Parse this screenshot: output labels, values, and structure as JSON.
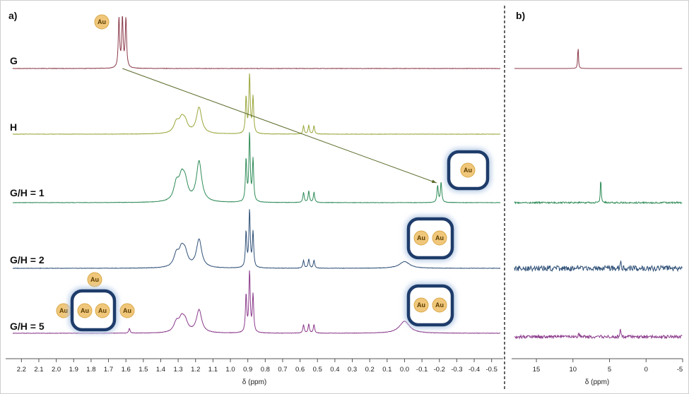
{
  "panels": {
    "a_label": "a)",
    "b_label": "b)"
  },
  "atom_label": "Au",
  "chart_data": [
    {
      "type": "line",
      "panel": "a",
      "xlabel": "δ (ppm)",
      "xlim": [
        2.25,
        -0.55
      ],
      "x_reversed": true,
      "x_ticks": [
        "2.2",
        "2.1",
        "2.0",
        "1.9",
        "1.8",
        "1.7",
        "1.6",
        "1.5",
        "1.4",
        "1.3",
        "1.2",
        "1.1",
        "1.0",
        "0.9",
        "0.8",
        "0.7",
        "0.6",
        "0.5",
        "0.4",
        "0.3",
        "0.2",
        "0.1",
        "0.0",
        "-0.1",
        "-0.2",
        "-0.3",
        "-0.4",
        "-0.5"
      ],
      "grid": false,
      "stacked": true,
      "series": [
        {
          "name": "G",
          "color": "#8b3a4a",
          "peaks": [
            {
              "x": 1.64,
              "y": 1.0
            },
            {
              "x": 1.62,
              "y": 1.0
            },
            {
              "x": 1.6,
              "y": 1.0
            }
          ]
        },
        {
          "name": "H",
          "color": "#9aa63a",
          "peaks": [
            {
              "x": 1.31,
              "y": 0.18
            },
            {
              "x": 1.28,
              "y": 0.2
            },
            {
              "x": 1.26,
              "y": 0.17
            },
            {
              "x": 1.18,
              "y": 0.45
            },
            {
              "x": 0.91,
              "y": 0.62
            },
            {
              "x": 0.89,
              "y": 1.0
            },
            {
              "x": 0.87,
              "y": 0.62
            },
            {
              "x": 0.58,
              "y": 0.14
            },
            {
              "x": 0.55,
              "y": 0.15
            },
            {
              "x": 0.52,
              "y": 0.14
            }
          ]
        },
        {
          "name": "G/H = 1",
          "color": "#2e8b57",
          "peaks": [
            {
              "x": 1.31,
              "y": 0.25
            },
            {
              "x": 1.28,
              "y": 0.3
            },
            {
              "x": 1.26,
              "y": 0.25
            },
            {
              "x": 1.18,
              "y": 0.6
            },
            {
              "x": 0.91,
              "y": 0.62
            },
            {
              "x": 0.89,
              "y": 1.0
            },
            {
              "x": 0.87,
              "y": 0.62
            },
            {
              "x": 0.58,
              "y": 0.15
            },
            {
              "x": 0.55,
              "y": 0.17
            },
            {
              "x": 0.52,
              "y": 0.15
            },
            {
              "x": -0.19,
              "y": 0.25
            },
            {
              "x": -0.21,
              "y": 0.3
            }
          ]
        },
        {
          "name": "G/H = 2",
          "color": "#2f5077",
          "peaks": [
            {
              "x": 1.31,
              "y": 0.22
            },
            {
              "x": 1.28,
              "y": 0.27
            },
            {
              "x": 1.26,
              "y": 0.22
            },
            {
              "x": 1.18,
              "y": 0.5
            },
            {
              "x": 0.91,
              "y": 0.62
            },
            {
              "x": 0.89,
              "y": 1.0
            },
            {
              "x": 0.87,
              "y": 0.62
            },
            {
              "x": 0.58,
              "y": 0.14
            },
            {
              "x": 0.55,
              "y": 0.16
            },
            {
              "x": 0.52,
              "y": 0.14
            },
            {
              "x": 0.0,
              "y": 0.12
            }
          ]
        },
        {
          "name": "G/H = 5",
          "color": "#8b3a8b",
          "peaks": [
            {
              "x": 1.58,
              "y": 0.08
            },
            {
              "x": 1.31,
              "y": 0.16
            },
            {
              "x": 1.28,
              "y": 0.2
            },
            {
              "x": 1.26,
              "y": 0.16
            },
            {
              "x": 1.18,
              "y": 0.38
            },
            {
              "x": 0.91,
              "y": 0.62
            },
            {
              "x": 0.89,
              "y": 1.0
            },
            {
              "x": 0.87,
              "y": 0.62
            },
            {
              "x": 0.58,
              "y": 0.14
            },
            {
              "x": 0.55,
              "y": 0.15
            },
            {
              "x": 0.52,
              "y": 0.14
            },
            {
              "x": 0.0,
              "y": 0.2
            }
          ]
        }
      ],
      "annotations": [
        {
          "type": "arrow",
          "from_series": "G",
          "from_x": 1.62,
          "to_series": "G/H = 1",
          "to_x": -0.2
        }
      ]
    },
    {
      "type": "line",
      "panel": "b",
      "xlabel": "δ (ppm)",
      "xlim": [
        18,
        -5
      ],
      "x_reversed": true,
      "x_ticks": [
        "15",
        "10",
        "5",
        "0",
        "-5"
      ],
      "x_tick_values": [
        15,
        10,
        5,
        0,
        -5
      ],
      "grid": false,
      "stacked": true,
      "series": [
        {
          "name": "G",
          "color": "#8b3a4a",
          "noise": 0.0,
          "peaks": [
            {
              "x": 9.3,
              "y": 1.0
            }
          ]
        },
        {
          "name": "G/H = 1",
          "color": "#2e8b57",
          "noise": 0.1,
          "peaks": [
            {
              "x": 6.2,
              "y": 1.0
            }
          ]
        },
        {
          "name": "G/H = 2",
          "color": "#2f5077",
          "noise": 0.35,
          "peaks": [
            {
              "x": 3.5,
              "y": 0.55
            }
          ]
        },
        {
          "name": "G/H = 5",
          "color": "#8b3a8b",
          "noise": 0.2,
          "peaks": [
            {
              "x": 9.2,
              "y": 0.35
            },
            {
              "x": 3.5,
              "y": 0.75
            }
          ]
        }
      ]
    }
  ],
  "colors": {
    "au_fill": "#f0c77a",
    "au_stroke": "#d9a94a",
    "cage_stroke": "#1e3c6a",
    "cage_glow": "#b9cde6",
    "arrow": "#5a6b2a"
  }
}
